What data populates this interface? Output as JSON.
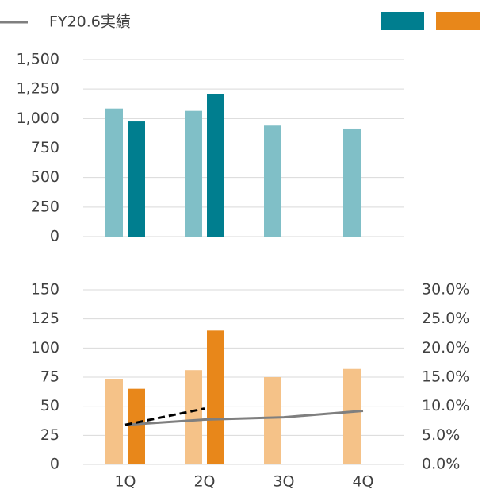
{
  "chart_data": [
    {
      "type": "bar",
      "categories": [
        null,
        null,
        null,
        null
      ],
      "series": [
        {
          "color": "#80bfc7",
          "values": [
            1085,
            1065,
            940,
            915
          ]
        },
        {
          "color": "#007e8f",
          "values": [
            975,
            1210,
            null,
            null
          ]
        }
      ],
      "ylim": [
        0,
        1500
      ],
      "yticks": [
        0,
        250,
        500,
        750,
        {
          "value": 1000,
          "label": "1,000"
        },
        {
          "value": 1250,
          "label": "1,250"
        },
        {
          "value": 1500,
          "label": "1,500"
        }
      ],
      "grid": true
    },
    {
      "type": "bar",
      "categories": [
        "1Q",
        "2Q",
        "3Q",
        "4Q"
      ],
      "series": [
        {
          "color": "#f5c288",
          "values": [
            73,
            81,
            75,
            82
          ]
        },
        {
          "color": "#e8871a",
          "values": [
            65,
            115,
            null,
            null
          ]
        },
        {
          "name": "FY20.6実績",
          "type": "line",
          "axis": "y2",
          "color": "#7f7f7f",
          "values": [
            6.8,
            7.7,
            8.1,
            9.2
          ]
        },
        {
          "type": "line",
          "axis": "y2",
          "color": "#000000",
          "dashed": true,
          "values": [
            6.8,
            9.6,
            null,
            null
          ]
        }
      ],
      "ylim": [
        0,
        150
      ],
      "yticks": [
        0,
        25,
        50,
        75,
        100,
        125,
        150
      ],
      "y2lim": [
        0,
        30
      ],
      "y2ticks": [
        {
          "value": 0,
          "label": "0.0%"
        },
        {
          "value": 5,
          "label": "5.0%"
        },
        {
          "value": 10,
          "label": "10.0%"
        },
        {
          "value": 15,
          "label": "15.0%"
        },
        {
          "value": 20,
          "label": "20.0%"
        },
        {
          "value": 25,
          "label": "25.0%"
        },
        {
          "value": 30,
          "label": "30.0%"
        }
      ],
      "grid": true
    }
  ]
}
